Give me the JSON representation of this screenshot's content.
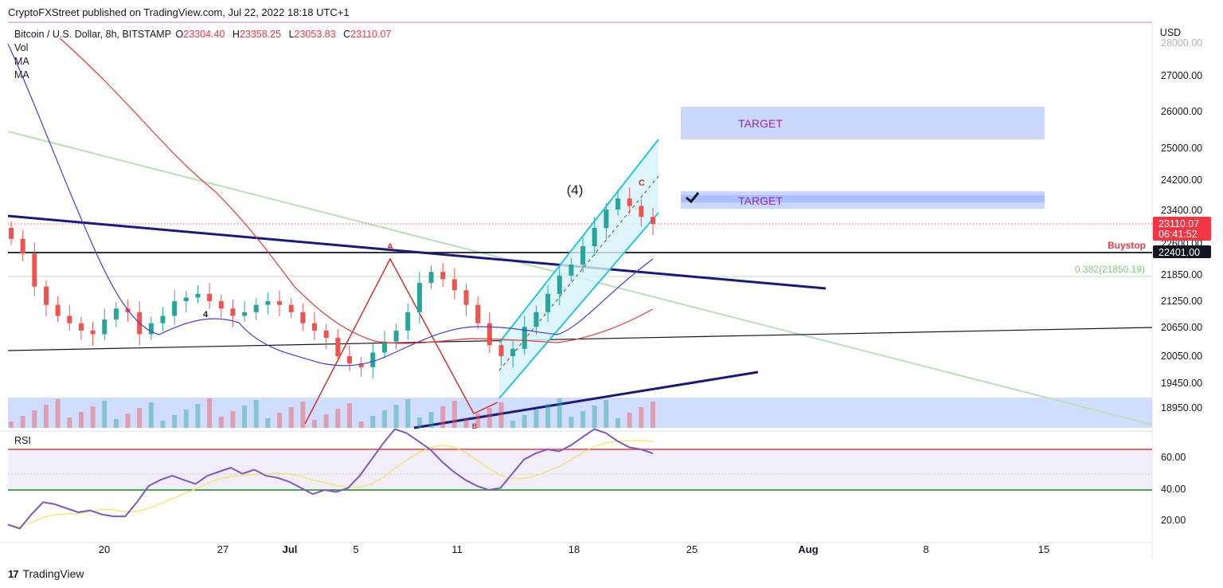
{
  "header": {
    "published": "CryptoFXStreet published on TradingView.com, Jul 22, 2022 18:18 UTC+1"
  },
  "legend": {
    "symbol": "Bitcoin / U.S. Dollar, 8h, BITSTAMP",
    "o_label": "O",
    "o": "23304.40",
    "h_label": "H",
    "h": "23358.25",
    "l_label": "L",
    "l": "23053.83",
    "c_label": "C",
    "c": "23110.07",
    "indicators": [
      "Vol",
      "MA",
      "MA"
    ]
  },
  "rsi_panel": {
    "label": "RSI"
  },
  "footer": {
    "brand": "TradingView",
    "logo": "17"
  },
  "colors": {
    "up": "#26a69a",
    "down": "#ef5350",
    "wave": "#d32f2f",
    "channel": "#26c6da",
    "trend": "#1a1a7e",
    "target": "#c9d7ff",
    "buystop": "#f23645",
    "rsi": "#7e57c2",
    "rsi_ma": "#fbe35d"
  },
  "chart_data": [
    {
      "type": "candlestick",
      "title": "Bitcoin / U.S. Dollar, 8h, BITSTAMP",
      "currency": "USD",
      "y_ticks": [
        "27000.00",
        "26000.00",
        "25000.00",
        "24200.00",
        "23400.00",
        "22600.00",
        "21850.00",
        "21250.00",
        "20650.00",
        "20050.00",
        "19450.00",
        "18950.00"
      ],
      "y_top_partial": "28000.00",
      "x_ticks": [
        "20",
        "27",
        "Jul",
        "5",
        "11",
        "18",
        "25",
        "Aug",
        "8",
        "15"
      ],
      "last_price": "23110.07",
      "countdown": "06:41:52",
      "buystop_label": "Buystop",
      "buystop_price": "22401.00",
      "fib_label": "0.382(21850.19)",
      "targets": [
        {
          "label": "TARGET",
          "from": 25300,
          "to": 26150
        },
        {
          "label": "TARGET",
          "from": 23450,
          "to": 23900
        }
      ],
      "wave_labels": {
        "a": "A",
        "b": "B",
        "c": "C",
        "four": "(4)",
        "sub4": "4"
      },
      "closes_approx": [
        22700,
        22300,
        21400,
        20900,
        20600,
        20400,
        20200,
        20100,
        20500,
        20800,
        20700,
        20100,
        20400,
        20600,
        21000,
        21100,
        21200,
        21000,
        20800,
        20600,
        20700,
        20900,
        21000,
        20900,
        20700,
        20400,
        20200,
        20000,
        19500,
        19300,
        19200,
        19600,
        19900,
        20200,
        20700,
        21500,
        21800,
        21600,
        21300,
        20900,
        20400,
        19800,
        19500,
        19700,
        20300,
        20700,
        21200,
        21700,
        22000,
        22500,
        23000,
        23500,
        23800,
        23600,
        23300,
        23110
      ],
      "volume_approx": "shown as translucent bars at bottom of price panel"
    },
    {
      "type": "line",
      "title": "RSI",
      "y_ticks": [
        "60.00",
        "40.00",
        "20.00"
      ],
      "bands": [
        60,
        50,
        40
      ],
      "rsi_approx": [
        23,
        21,
        28,
        34,
        33,
        31,
        29,
        30,
        28,
        27,
        27,
        34,
        42,
        45,
        47,
        45,
        43,
        47,
        49,
        51,
        48,
        50,
        47,
        46,
        44,
        41,
        38,
        40,
        39,
        41,
        47,
        55,
        63,
        70,
        68,
        64,
        60,
        54,
        49,
        45,
        42,
        40,
        41,
        48,
        55,
        58,
        60,
        59,
        62,
        66,
        70,
        68,
        64,
        61,
        60,
        58
      ]
    }
  ]
}
